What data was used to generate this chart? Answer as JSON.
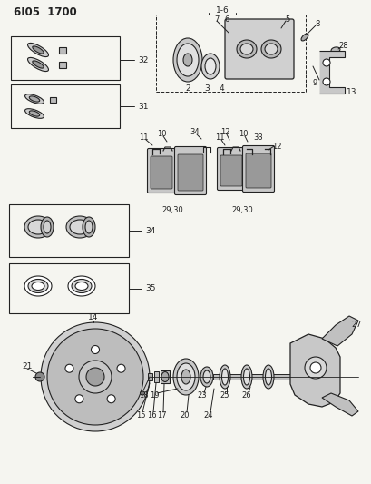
{
  "title": "6I05  1700",
  "bg_color": "#f5f5f0",
  "lc": "#222222",
  "fig_width": 4.1,
  "fig_height": 5.33,
  "dpi": 100
}
